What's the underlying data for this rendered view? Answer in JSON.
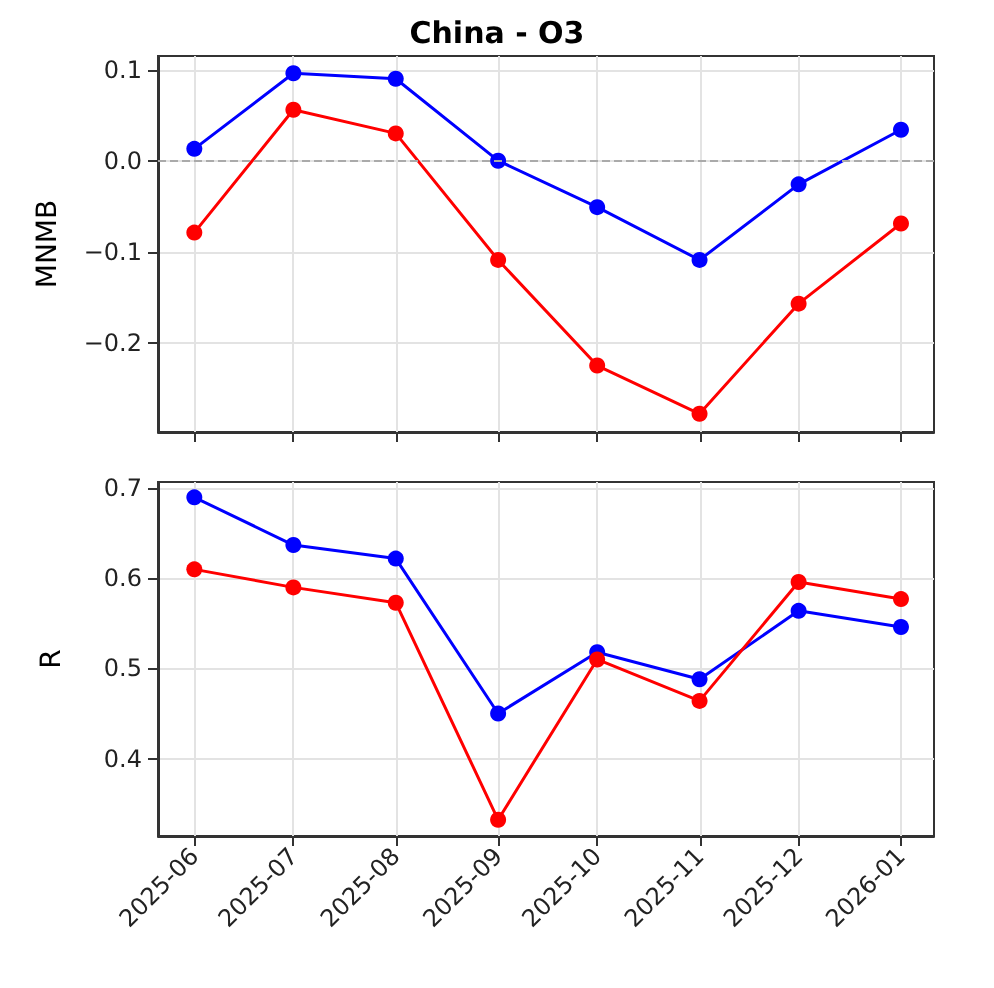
{
  "chart_data": [
    {
      "type": "line",
      "title": "China - O3",
      "ylabel": "MNMB",
      "x": [
        "2025-06",
        "2025-07",
        "2025-08",
        "2025-09",
        "2025-10",
        "2025-11",
        "2025-12",
        "2026-01"
      ],
      "xlim": [
        "2025-05-21",
        "2026-01-11"
      ],
      "xticks": [
        "2025-06",
        "2025-07",
        "2025-08",
        "2025-09",
        "2025-10",
        "2025-11",
        "2025-12",
        "2026-01"
      ],
      "ylim": [
        -0.298,
        0.115
      ],
      "yticks": [
        {
          "value": -0.2,
          "label": "−0.2"
        },
        {
          "value": -0.1,
          "label": "−0.1"
        },
        {
          "value": 0,
          "label": "0.0"
        },
        {
          "value": 0.1,
          "label": "0.1"
        }
      ],
      "series": [
        {
          "color": "#0000ff",
          "values": [
            0.013,
            0.096,
            0.09,
            0.0,
            -0.051,
            -0.109,
            -0.026,
            0.034
          ]
        },
        {
          "color": "#ff0000",
          "values": [
            -0.079,
            0.056,
            0.03,
            -0.109,
            -0.225,
            -0.278,
            -0.157,
            -0.069
          ]
        }
      ],
      "ref_lines": [
        {
          "axis": "y",
          "value": 0,
          "color": "#aaaaaa",
          "line_style": "dashed"
        }
      ],
      "grid": true,
      "marker": "circle",
      "line_style": "solid",
      "tick_labels": "y"
    },
    {
      "type": "line",
      "ylabel": "R",
      "x": [
        "2025-06",
        "2025-07",
        "2025-08",
        "2025-09",
        "2025-10",
        "2025-11",
        "2025-12",
        "2026-01"
      ],
      "xlim": [
        "2025-05-21",
        "2026-01-11"
      ],
      "xticks": [
        "2025-06",
        "2025-07",
        "2025-08",
        "2025-09",
        "2025-10",
        "2025-11",
        "2025-12",
        "2026-01"
      ],
      "ylim": [
        0.314,
        0.707
      ],
      "yticks": [
        0.4,
        0.5,
        0.6,
        0.7
      ],
      "series": [
        {
          "color": "#0000ff",
          "values": [
            0.69,
            0.637,
            0.622,
            0.45,
            0.518,
            0.488,
            0.564,
            0.546
          ]
        },
        {
          "color": "#ff0000",
          "values": [
            0.61,
            0.59,
            0.573,
            0.332,
            0.51,
            0.464,
            0.596,
            0.577
          ]
        }
      ],
      "grid": true,
      "marker": "circle",
      "line_style": "solid"
    }
  ]
}
